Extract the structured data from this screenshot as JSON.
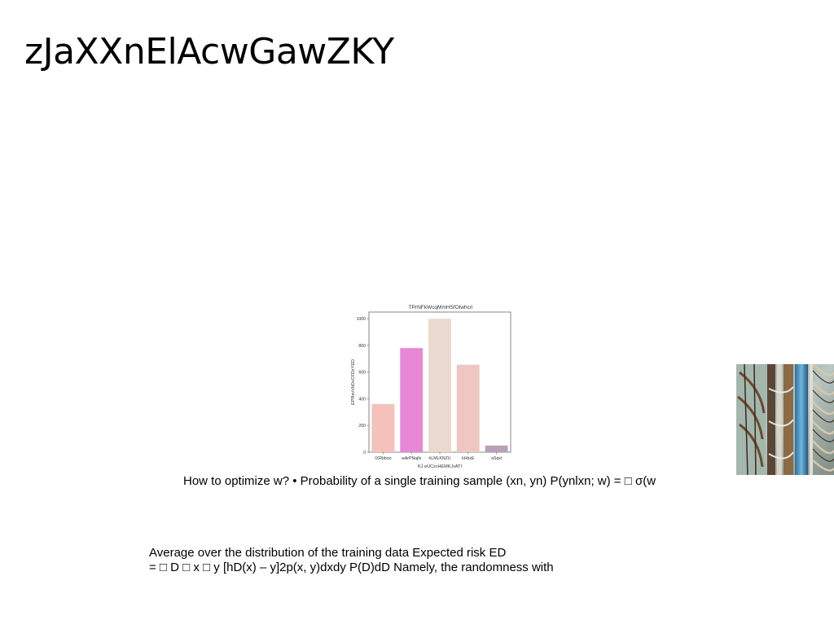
{
  "slide": {
    "title": "zJaXXnElAcwGawZKY",
    "bullet_text": "How to optimize w? • Probability of a single training sample (xn, yn) P(ynlxn; w) = □ σ(w",
    "body_lines": [
      "Average over the distribution of the training data Expected risk ED",
      "= □ D □ x □ y [hD(x) – y]2p(x, y)dxdy P(D)dD Namely, the randomness with"
    ],
    "photo_icon": "staircase-photo"
  },
  "chart_data": {
    "type": "bar",
    "title": "TPrNFkWcqMmHSfOlwhcri",
    "xlabel": "KJ eUCzcHEMKJvATI",
    "ylabel": "EPRevVbDvCFDzYED",
    "categories": [
      "IXRbboo",
      "wArPNajfs",
      "hLMLKNZU",
      "kHbzE",
      "aSqxl"
    ],
    "values": [
      360,
      780,
      1000,
      655,
      50
    ],
    "colors": [
      "#f4c2bb",
      "#e887d6",
      "#ead9cf",
      "#efc6c1",
      "#b8a1b8"
    ],
    "ylim": [
      0,
      1050
    ],
    "yticks": [
      0,
      200,
      400,
      600,
      800,
      1000
    ],
    "grid": false
  }
}
